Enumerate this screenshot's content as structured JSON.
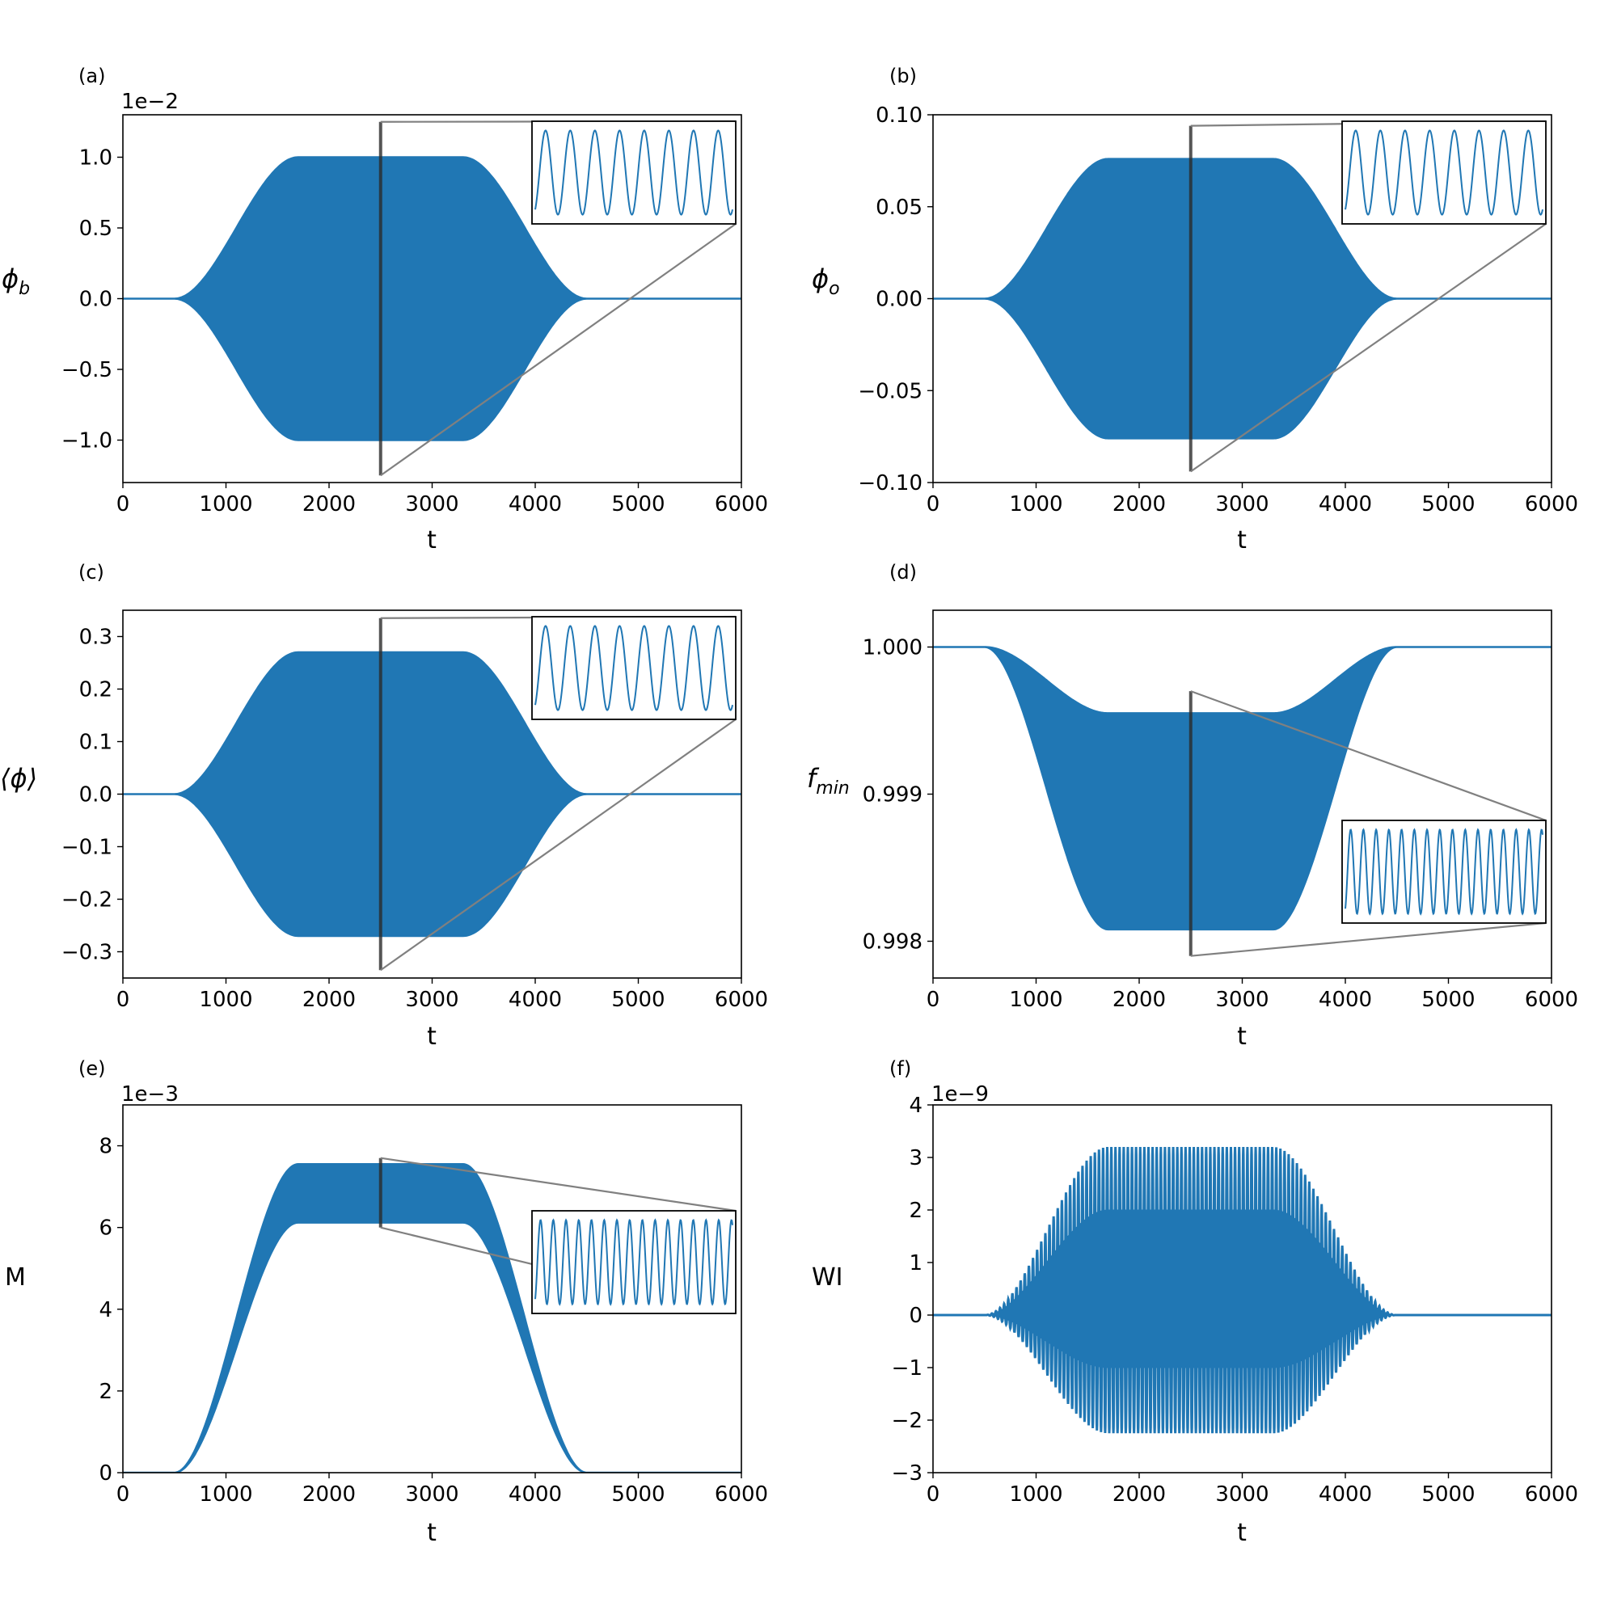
{
  "figure": {
    "title": ""
  },
  "colors": {
    "series": "#2077b4",
    "axes": "#000000",
    "connector": "#808080",
    "background": "#ffffff"
  },
  "chart_data": [
    {
      "id": "a",
      "panel_label": "(a)",
      "type": "line",
      "xlabel": "t",
      "ylabel": "ϕ",
      "ylabel_sub": "b",
      "ylabel_math": true,
      "offset_text": "1e−2",
      "xlim": [
        0,
        6000
      ],
      "ylim": [
        -1.3,
        1.3
      ],
      "xticks": [
        0,
        1000,
        2000,
        3000,
        4000,
        5000,
        6000
      ],
      "xtick_labels": [
        "0",
        "1000",
        "2000",
        "3000",
        "4000",
        "5000",
        "6000"
      ],
      "yticks": [
        -1.0,
        -0.5,
        0.0,
        0.5,
        1.0
      ],
      "ytick_labels": [
        "−1.0",
        "−0.5",
        "0.0",
        "0.5",
        "1.0"
      ],
      "envelope": {
        "mode": "sym",
        "t": [
          0,
          500,
          1700,
          3300,
          4500,
          6000
        ],
        "upper": [
          0,
          0,
          1.0,
          1.0,
          0,
          0
        ]
      },
      "zoom_marker": {
        "t": 2500,
        "y": [
          -1.25,
          1.25
        ]
      },
      "inset": {
        "position": "top-right",
        "cycles": 8.0
      }
    },
    {
      "id": "b",
      "panel_label": "(b)",
      "type": "line",
      "xlabel": "t",
      "ylabel": "ϕ",
      "ylabel_sub": "o",
      "ylabel_math": true,
      "offset_text": "",
      "xlim": [
        0,
        6000
      ],
      "ylim": [
        -0.1,
        0.1
      ],
      "xticks": [
        0,
        1000,
        2000,
        3000,
        4000,
        5000,
        6000
      ],
      "xtick_labels": [
        "0",
        "1000",
        "2000",
        "3000",
        "4000",
        "5000",
        "6000"
      ],
      "yticks": [
        -0.1,
        -0.05,
        0.0,
        0.05,
        0.1
      ],
      "ytick_labels": [
        "−0.10",
        "−0.05",
        "0.00",
        "0.05",
        "0.10"
      ],
      "envelope": {
        "mode": "sym",
        "t": [
          0,
          500,
          1700,
          3300,
          4500,
          6000
        ],
        "upper": [
          0,
          0,
          0.076,
          0.076,
          0,
          0
        ]
      },
      "zoom_marker": {
        "t": 2500,
        "y": [
          -0.094,
          0.094
        ]
      },
      "inset": {
        "position": "top-right",
        "cycles": 8.0
      }
    },
    {
      "id": "c",
      "panel_label": "(c)",
      "type": "line",
      "xlabel": "t",
      "ylabel": "⟨ϕ⟩",
      "ylabel_sub": "",
      "ylabel_math": false,
      "offset_text": "",
      "xlim": [
        0,
        6000
      ],
      "ylim": [
        -0.35,
        0.35
      ],
      "xticks": [
        0,
        1000,
        2000,
        3000,
        4000,
        5000,
        6000
      ],
      "xtick_labels": [
        "0",
        "1000",
        "2000",
        "3000",
        "4000",
        "5000",
        "6000"
      ],
      "yticks": [
        -0.3,
        -0.2,
        -0.1,
        0.0,
        0.1,
        0.2,
        0.3
      ],
      "ytick_labels": [
        "−0.3",
        "−0.2",
        "−0.1",
        "0.0",
        "0.1",
        "0.2",
        "0.3"
      ],
      "envelope": {
        "mode": "sym",
        "t": [
          0,
          500,
          1700,
          3300,
          4500,
          6000
        ],
        "upper": [
          0,
          0,
          0.27,
          0.27,
          0,
          0
        ]
      },
      "zoom_marker": {
        "t": 2500,
        "y": [
          -0.335,
          0.335
        ]
      },
      "inset": {
        "position": "top-right",
        "cycles": 8.0
      }
    },
    {
      "id": "d",
      "panel_label": "(d)",
      "type": "line",
      "xlabel": "t",
      "ylabel": "f",
      "ylabel_sub": "min",
      "ylabel_math": true,
      "offset_text": "",
      "xlim": [
        0,
        6000
      ],
      "ylim": [
        0.99775,
        1.00025
      ],
      "xticks": [
        0,
        1000,
        2000,
        3000,
        4000,
        5000,
        6000
      ],
      "xtick_labels": [
        "0",
        "1000",
        "2000",
        "3000",
        "4000",
        "5000",
        "6000"
      ],
      "yticks": [
        0.998,
        0.999,
        1.0
      ],
      "ytick_labels": [
        "0.998",
        "0.999",
        "1.000"
      ],
      "envelope": {
        "mode": "band",
        "t": [
          0,
          500,
          1700,
          3300,
          4500,
          6000
        ],
        "upper": [
          1.0,
          1.0,
          0.99955,
          0.99955,
          1.0,
          1.0
        ],
        "lower": [
          1.0,
          1.0,
          0.99808,
          0.99808,
          1.0,
          1.0
        ]
      },
      "zoom_marker": {
        "t": 2500,
        "y": [
          0.9979,
          0.9997
        ]
      },
      "inset": {
        "position": "bottom-right",
        "cycles": 15.5
      }
    },
    {
      "id": "e",
      "panel_label": "(e)",
      "type": "line",
      "xlabel": "t",
      "ylabel": "M",
      "ylabel_sub": "",
      "ylabel_math": false,
      "offset_text": "1e−3",
      "xlim": [
        0,
        6000
      ],
      "ylim": [
        0,
        9
      ],
      "xticks": [
        0,
        1000,
        2000,
        3000,
        4000,
        5000,
        6000
      ],
      "xtick_labels": [
        "0",
        "1000",
        "2000",
        "3000",
        "4000",
        "5000",
        "6000"
      ],
      "yticks": [
        0,
        2,
        4,
        6,
        8
      ],
      "ytick_labels": [
        "0",
        "2",
        "4",
        "6",
        "8"
      ],
      "envelope": {
        "mode": "band",
        "t": [
          0,
          500,
          1700,
          3300,
          4500,
          6000
        ],
        "upper": [
          0,
          0,
          7.55,
          7.55,
          0,
          0
        ],
        "lower": [
          0,
          0,
          6.12,
          6.12,
          0,
          0
        ]
      },
      "zoom_marker": {
        "t": 2500,
        "y": [
          6.0,
          7.7
        ]
      },
      "inset": {
        "position": "middle-right",
        "cycles": 15.5
      }
    },
    {
      "id": "f",
      "panel_label": "(f)",
      "type": "line",
      "xlabel": "t",
      "ylabel": "WI",
      "ylabel_sub": "",
      "ylabel_math": false,
      "offset_text": "1e−9",
      "xlim": [
        0,
        6000
      ],
      "ylim": [
        -3,
        4
      ],
      "xticks": [
        0,
        1000,
        2000,
        3000,
        4000,
        5000,
        6000
      ],
      "xtick_labels": [
        "0",
        "1000",
        "2000",
        "3000",
        "4000",
        "5000",
        "6000"
      ],
      "yticks": [
        -3,
        -2,
        -1,
        0,
        1,
        2,
        3,
        4
      ],
      "ytick_labels": [
        "−3",
        "−2",
        "−1",
        "0",
        "1",
        "2",
        "3",
        "4"
      ],
      "envelope": {
        "mode": "wi",
        "t": [
          0,
          500,
          1700,
          3300,
          4500,
          6000
        ],
        "upper_peak": [
          0,
          0,
          3.2,
          3.2,
          0,
          0
        ],
        "upper_trough": [
          0,
          0,
          2.0,
          2.0,
          0,
          0
        ],
        "lower_peak": [
          0,
          0,
          -1.0,
          -1.0,
          0,
          0
        ],
        "lower_trough": [
          0,
          0,
          -2.25,
          -2.25,
          0,
          0
        ],
        "period": 40
      },
      "zoom_marker": null,
      "inset": null
    }
  ]
}
